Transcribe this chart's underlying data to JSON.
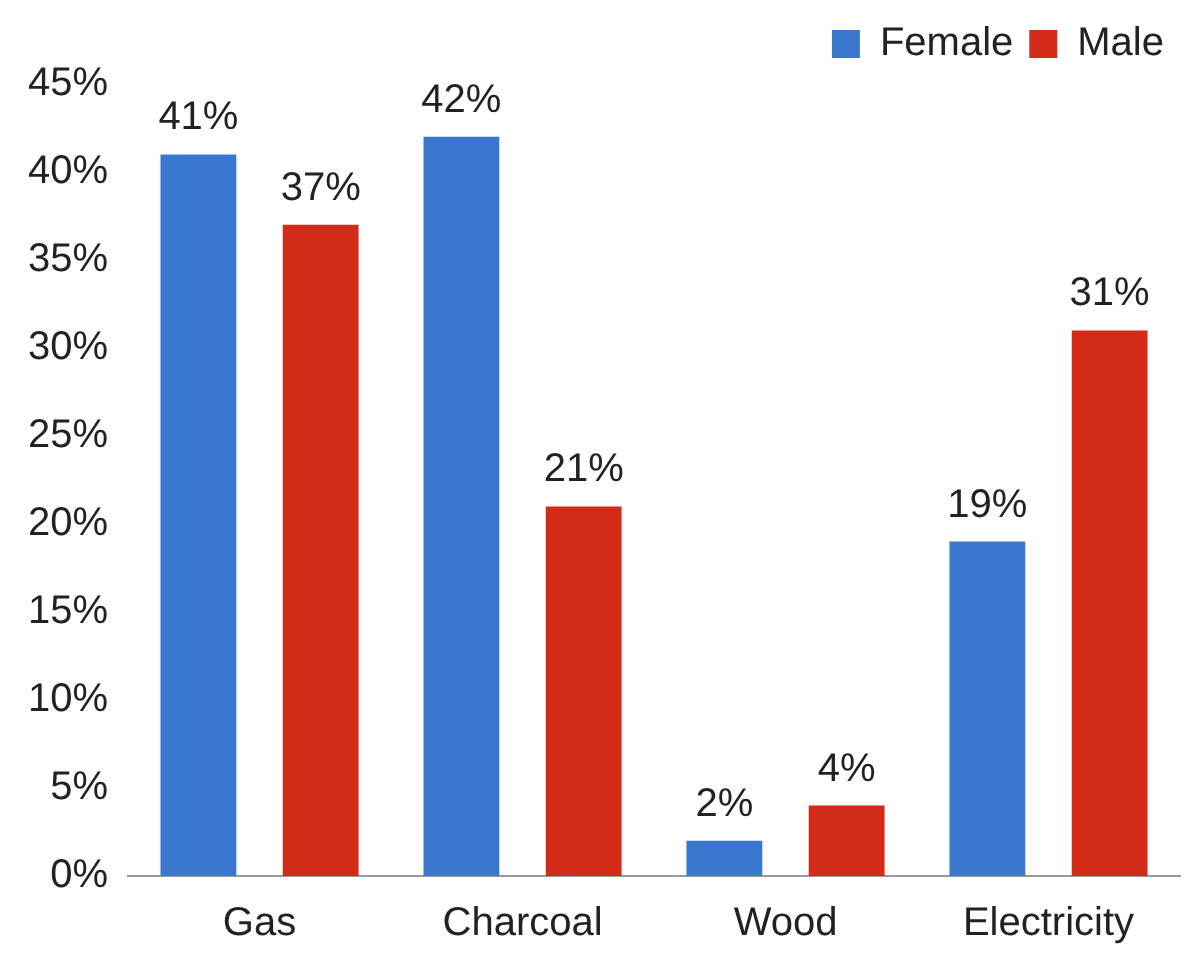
{
  "chart_data": {
    "type": "bar",
    "categories": [
      "Gas",
      "Charcoal",
      "Wood",
      "Electricity"
    ],
    "series": [
      {
        "name": "Female",
        "color": "#3a78cf",
        "values": [
          41,
          42,
          2,
          19
        ],
        "value_labels": [
          "41%",
          "42%",
          "2%",
          "19%"
        ]
      },
      {
        "name": "Male",
        "color": "#d42b19",
        "values": [
          37,
          21,
          4,
          31
        ],
        "value_labels": [
          "37%",
          "21%",
          "4%",
          "31%"
        ]
      }
    ],
    "ylim": [
      0,
      45
    ],
    "yticks": [
      {
        "value": 0,
        "label": "0%"
      },
      {
        "value": 5,
        "label": "5%"
      },
      {
        "value": 10,
        "label": "10%"
      },
      {
        "value": 15,
        "label": "15%"
      },
      {
        "value": 20,
        "label": "20%"
      },
      {
        "value": 25,
        "label": "25%"
      },
      {
        "value": 30,
        "label": "30%"
      },
      {
        "value": 35,
        "label": "35%"
      },
      {
        "value": 40,
        "label": "40%"
      },
      {
        "value": 45,
        "label": "45%"
      }
    ],
    "grid": false,
    "legend": "top right"
  }
}
